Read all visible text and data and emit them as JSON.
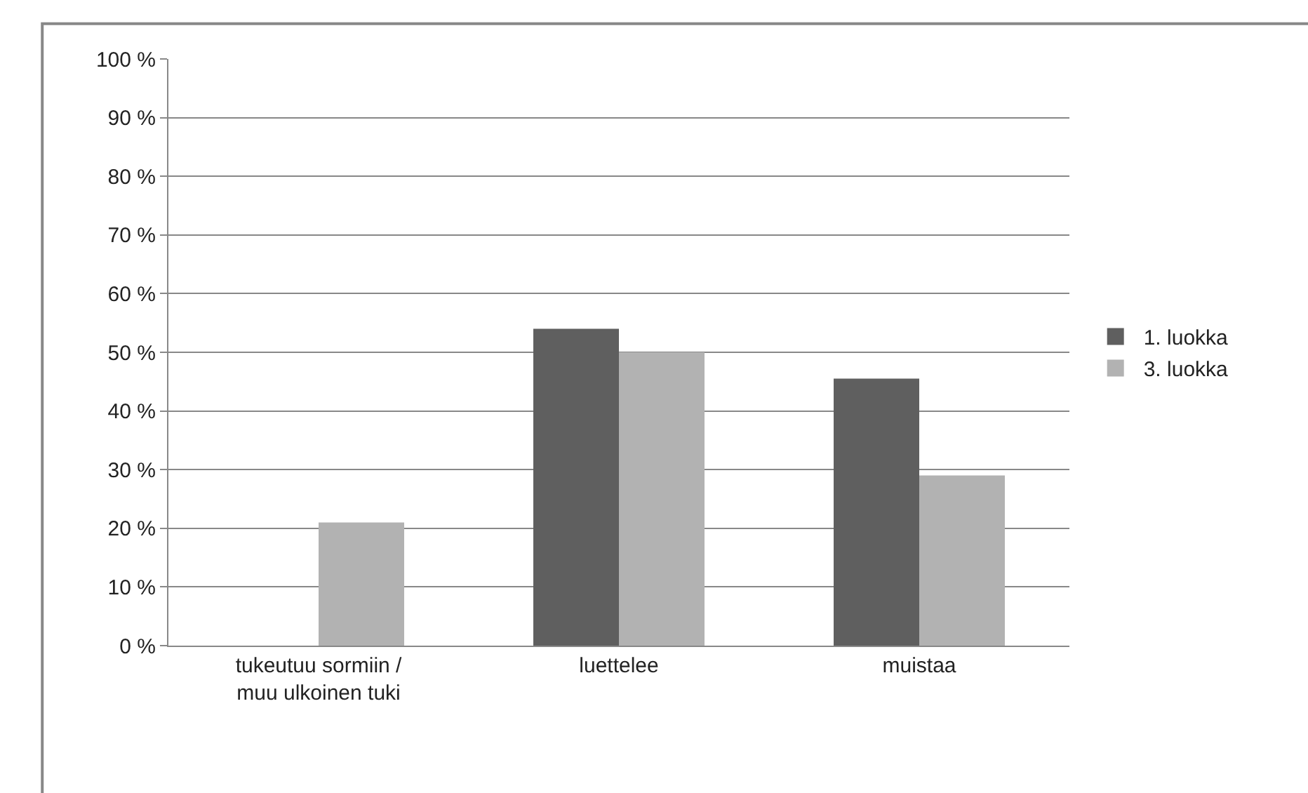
{
  "chart_data": {
    "type": "bar",
    "categories": [
      "tukeutuu sormiin / muu ulkoinen tuki",
      "luettelee",
      "muistaa"
    ],
    "series": [
      {
        "name": "1. luokka",
        "color": "#5f5f5f",
        "values": [
          0,
          54,
          45.5
        ]
      },
      {
        "name": "3. luokka",
        "color": "#b2b2b2",
        "values": [
          21,
          50,
          29
        ]
      }
    ],
    "ylim": [
      0,
      100
    ],
    "yticks": [
      {
        "value": 0,
        "label": "0 %"
      },
      {
        "value": 10,
        "label": "10 %"
      },
      {
        "value": 20,
        "label": "20 %"
      },
      {
        "value": 30,
        "label": "30 %"
      },
      {
        "value": 40,
        "label": "40 %"
      },
      {
        "value": 50,
        "label": "50 %"
      },
      {
        "value": 60,
        "label": "60 %"
      },
      {
        "value": 70,
        "label": "70 %"
      },
      {
        "value": 80,
        "label": "80 %"
      },
      {
        "value": 90,
        "label": "90 %"
      },
      {
        "value": 100,
        "label": "100 %"
      }
    ],
    "grid": "y",
    "legend": "right"
  }
}
